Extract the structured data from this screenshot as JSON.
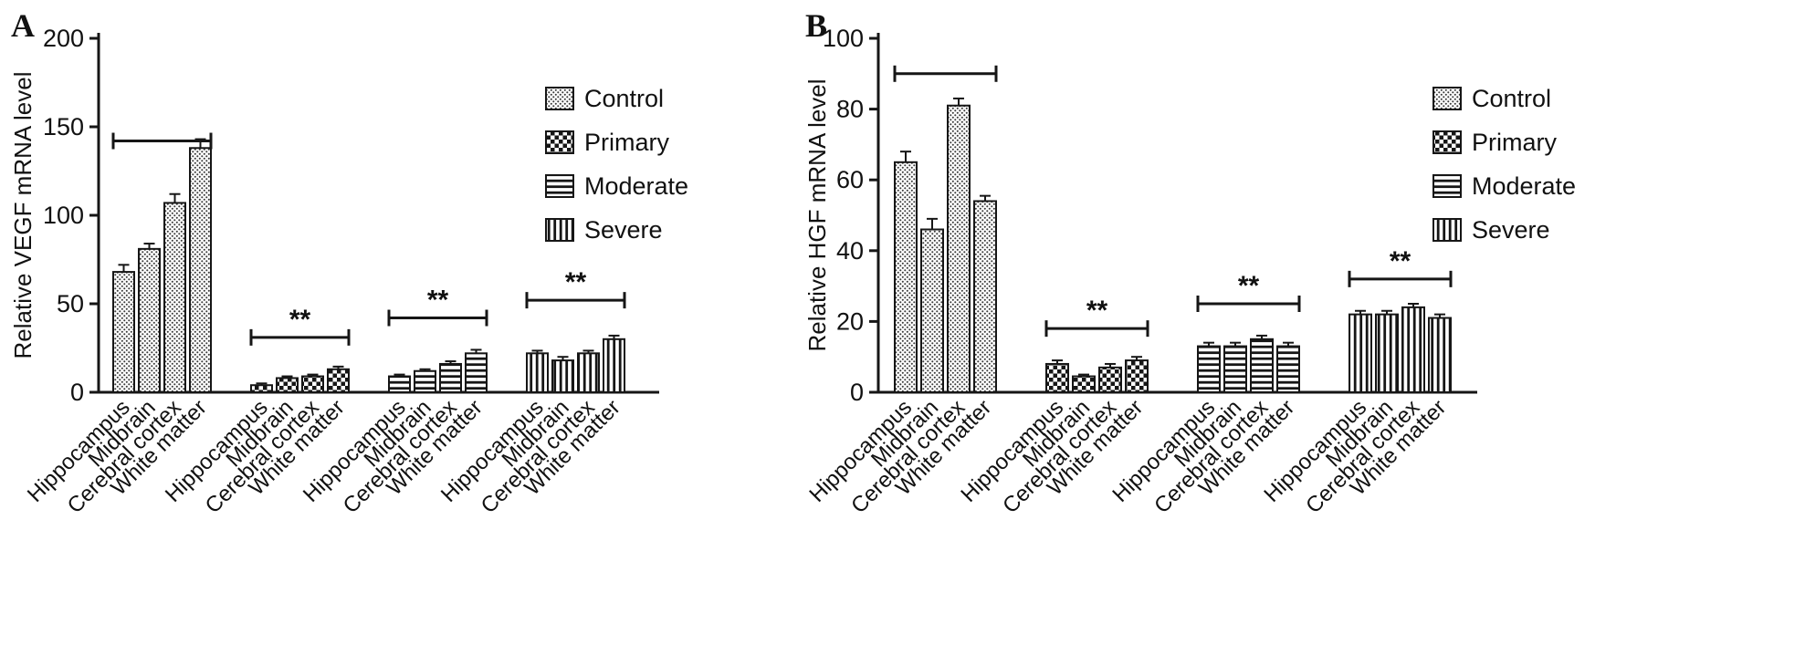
{
  "figure": {
    "background": "#ffffff",
    "ink_color": "#161616",
    "description": "Two-panel grouped bar figure of relative mRNA levels by brain region and disease severity"
  },
  "chart_data": [
    {
      "type": "bar",
      "panel_label": "A",
      "title": "",
      "xlabel": "",
      "ylabel": "Relative VEGF mRNA level",
      "ylim": [
        0,
        200
      ],
      "yticks": [
        0,
        50,
        100,
        150,
        200
      ],
      "grid": false,
      "legend_position": "upper right inside",
      "categories": [
        "Hippocampus",
        "Midbrain",
        "Cerebral cortex",
        "White matter"
      ],
      "legend": [
        "Control",
        "Primary",
        "Moderate",
        "Severe"
      ],
      "series": [
        {
          "name": "Control",
          "pattern": "dots",
          "values": [
            68,
            81,
            107,
            138
          ],
          "errors": [
            4,
            3,
            5,
            5
          ],
          "bracket": {
            "label": "",
            "y": 142
          }
        },
        {
          "name": "Primary",
          "pattern": "checker",
          "values": [
            4,
            8,
            9,
            13
          ],
          "errors": [
            1,
            1,
            1,
            1.5
          ],
          "bracket": {
            "label": "**",
            "y": 31
          }
        },
        {
          "name": "Moderate",
          "pattern": "hlines",
          "values": [
            9,
            12,
            16,
            22
          ],
          "errors": [
            1,
            1,
            1.5,
            2
          ],
          "bracket": {
            "label": "**",
            "y": 42
          }
        },
        {
          "name": "Severe",
          "pattern": "vlines",
          "values": [
            22,
            18,
            22,
            30
          ],
          "errors": [
            1.5,
            2,
            1.5,
            2
          ],
          "bracket": {
            "label": "**",
            "y": 52
          }
        }
      ]
    },
    {
      "type": "bar",
      "panel_label": "B",
      "title": "",
      "xlabel": "",
      "ylabel": "Relative HGF mRNA level",
      "ylim": [
        0,
        100
      ],
      "yticks": [
        0,
        20,
        40,
        60,
        80,
        100
      ],
      "grid": false,
      "legend_position": "upper right inside",
      "categories": [
        "Hippocampus",
        "Midbrain",
        "Cerebral cortex",
        "White matter"
      ],
      "legend": [
        "Control",
        "Primary",
        "Moderate",
        "Severe"
      ],
      "series": [
        {
          "name": "Control",
          "pattern": "dots",
          "values": [
            65,
            46,
            81,
            54
          ],
          "errors": [
            3,
            3,
            2,
            1.5
          ],
          "bracket": {
            "label": "",
            "y": 90
          }
        },
        {
          "name": "Primary",
          "pattern": "checker",
          "values": [
            8,
            4.5,
            7,
            9
          ],
          "errors": [
            1,
            0.5,
            1,
            1
          ],
          "bracket": {
            "label": "**",
            "y": 18
          }
        },
        {
          "name": "Moderate",
          "pattern": "hlines",
          "values": [
            13,
            13,
            15,
            13
          ],
          "errors": [
            1,
            1,
            1,
            1
          ],
          "bracket": {
            "label": "**",
            "y": 25
          }
        },
        {
          "name": "Severe",
          "pattern": "vlines",
          "values": [
            22,
            22,
            24,
            21
          ],
          "errors": [
            1,
            1,
            1,
            1
          ],
          "bracket": {
            "label": "**",
            "y": 32
          }
        }
      ]
    }
  ]
}
